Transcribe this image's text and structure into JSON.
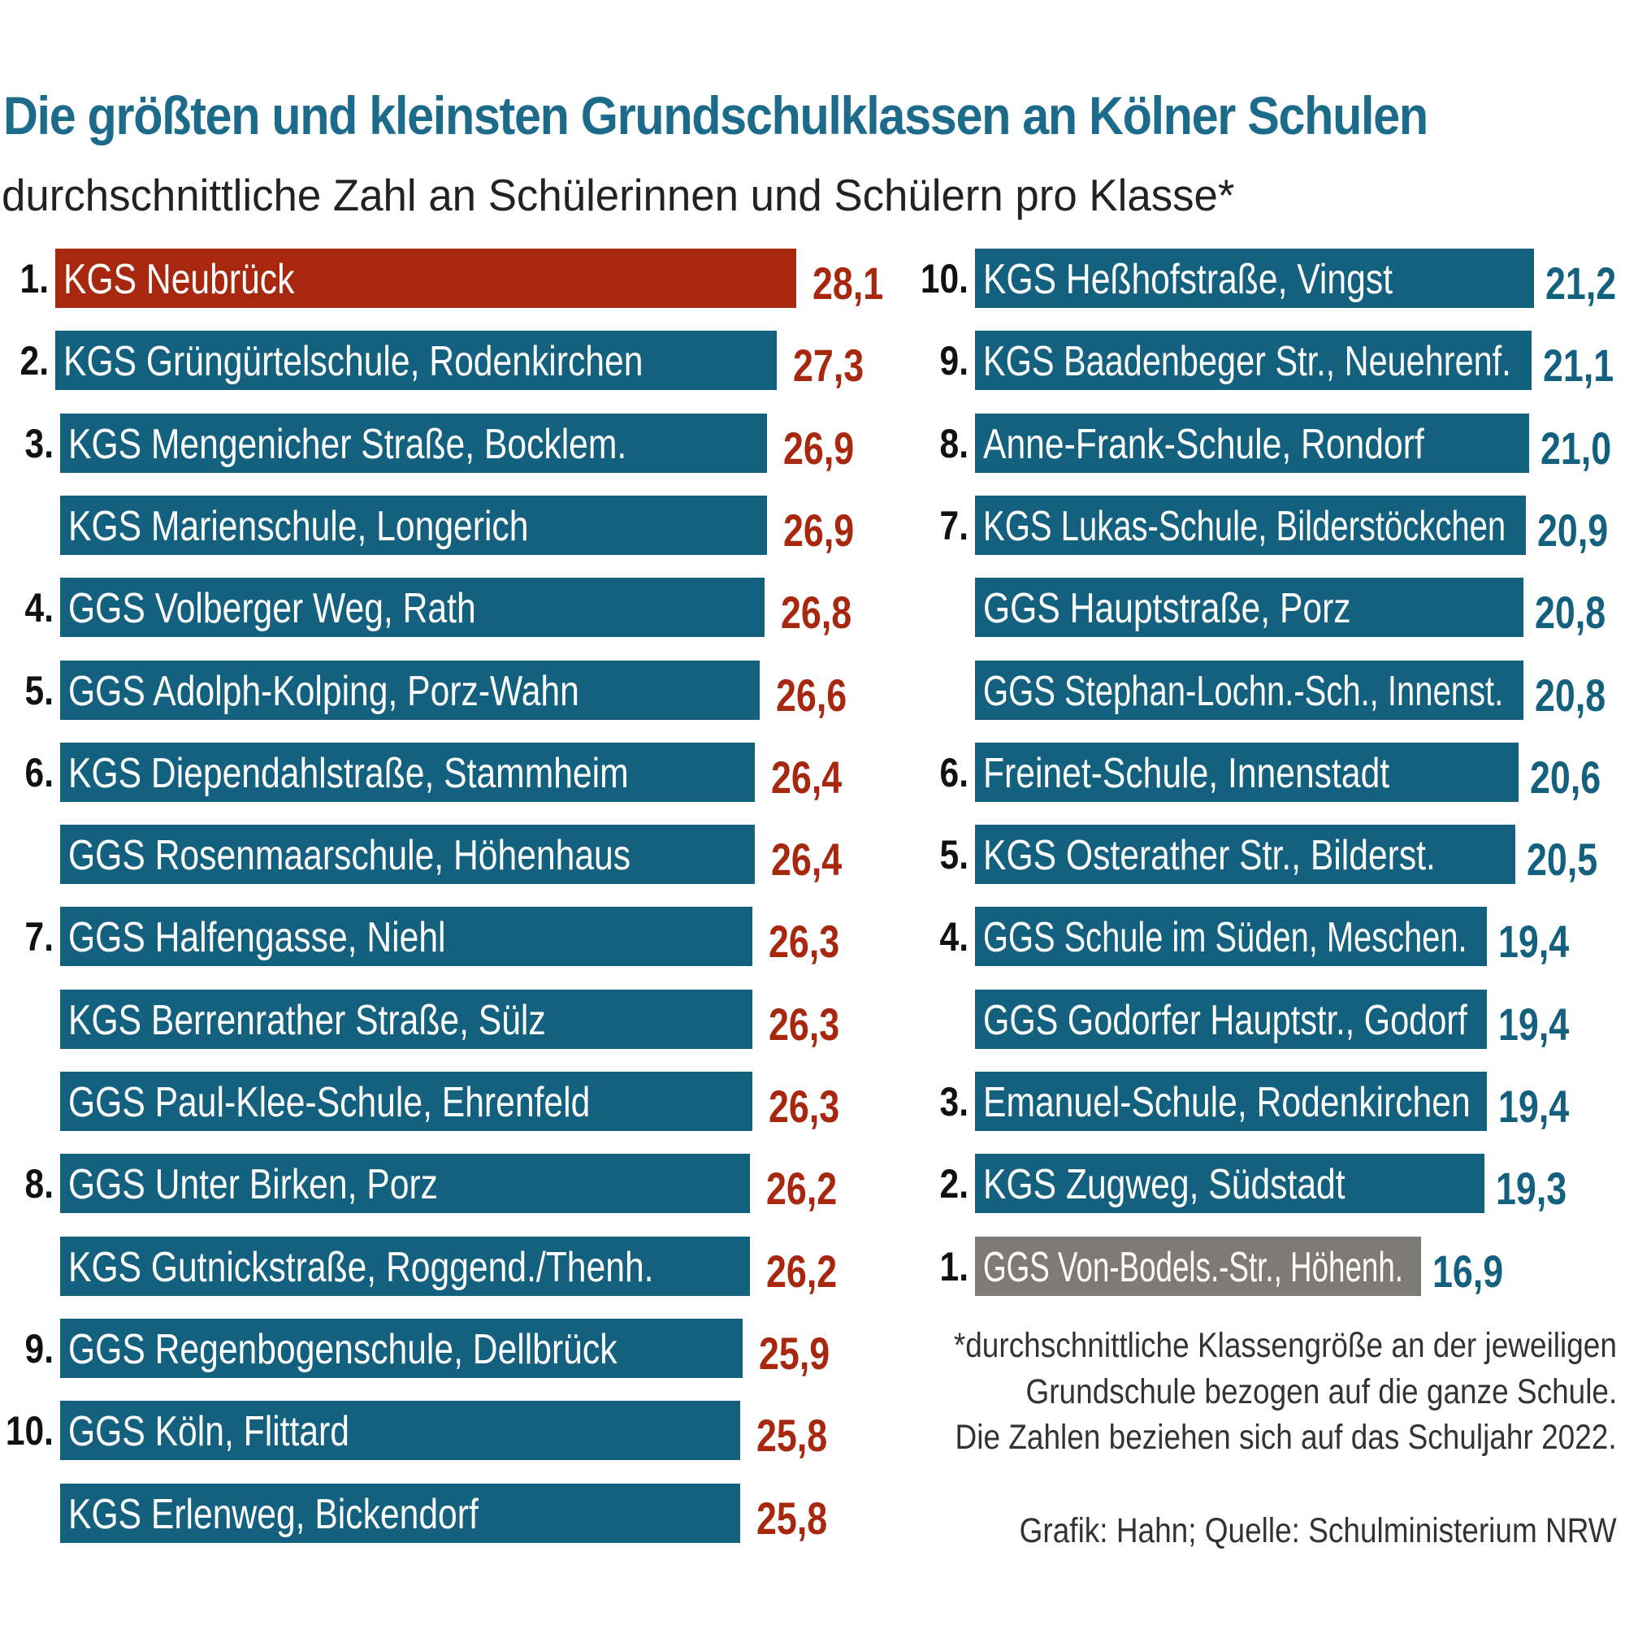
{
  "chart_data": {
    "type": "bar",
    "orientation": "horizontal",
    "title": "Die größten und kleinsten Grundschulklassen an Kölner Schulen",
    "subtitle": "durchschnittliche Zahl an Schülerinnen und Schülern pro Klasse*",
    "colors": {
      "bar": "#13607f",
      "highlight_largest": "#a8280f",
      "highlight_smallest": "#7e7b77",
      "value_left": "#a8280f",
      "value_right": "#13607f",
      "title": "#1d6b8b"
    },
    "largest": [
      {
        "rank": "1.",
        "name": "KGS Neubrück",
        "value": 28.1,
        "label": "28,1"
      },
      {
        "rank": "2.",
        "name": "KGS Grüngürtelschule, Rodenkirchen",
        "value": 27.3,
        "label": "27,3"
      },
      {
        "rank": "3.",
        "name": "KGS Mengenicher Straße, Bocklem.",
        "value": 26.9,
        "label": "26,9"
      },
      {
        "rank": "",
        "name": "KGS Marienschule, Longerich",
        "value": 26.9,
        "label": "26,9"
      },
      {
        "rank": "4.",
        "name": "GGS Volberger Weg, Rath",
        "value": 26.8,
        "label": "26,8"
      },
      {
        "rank": "5.",
        "name": "GGS Adolph-Kolping, Porz-Wahn",
        "value": 26.6,
        "label": "26,6"
      },
      {
        "rank": "6.",
        "name": "KGS Diependahlstraße, Stammheim",
        "value": 26.4,
        "label": "26,4"
      },
      {
        "rank": "",
        "name": "GGS Rosenmaarschule, Höhenhaus",
        "value": 26.4,
        "label": "26,4"
      },
      {
        "rank": "7.",
        "name": "GGS  Halfengasse, Niehl",
        "value": 26.3,
        "label": "26,3"
      },
      {
        "rank": "",
        "name": "KGS Berrenrather Straße, Sülz",
        "value": 26.3,
        "label": "26,3"
      },
      {
        "rank": "",
        "name": "GGS Paul-Klee-Schule, Ehrenfeld",
        "value": 26.3,
        "label": "26,3"
      },
      {
        "rank": "8.",
        "name": "GGS Unter Birken, Porz",
        "value": 26.2,
        "label": "26,2"
      },
      {
        "rank": "",
        "name": "KGS Gutnickstraße, Roggend./Thenh.",
        "value": 26.2,
        "label": "26,2"
      },
      {
        "rank": "9.",
        "name": "GGS Regenbogenschule, Dellbrück",
        "value": 25.9,
        "label": "25,9"
      },
      {
        "rank": "10.",
        "name": "GGS Köln, Flittard",
        "value": 25.8,
        "label": "25,8"
      },
      {
        "rank": "",
        "name": "KGS Erlenweg, Bickendorf",
        "value": 25.8,
        "label": "25,8"
      }
    ],
    "smallest": [
      {
        "rank": "10.",
        "name": "KGS Heßhofstraße, Vingst",
        "value": 21.2,
        "label": "21,2"
      },
      {
        "rank": "9.",
        "name": "KGS Baadenbeger Str., Neuehrenf.",
        "value": 21.1,
        "label": "21,1"
      },
      {
        "rank": "8.",
        "name": "Anne-Frank-Schule, Rondorf",
        "value": 21.0,
        "label": "21,0"
      },
      {
        "rank": "7.",
        "name": "KGS Lukas-Schule, Bilderstöckchen",
        "value": 20.9,
        "label": "20,9"
      },
      {
        "rank": "",
        "name": "GGS Hauptstraße, Porz",
        "value": 20.8,
        "label": "20,8"
      },
      {
        "rank": "",
        "name": "GGS Stephan-Lochn.-Sch., Innenst.",
        "value": 20.8,
        "label": "20,8"
      },
      {
        "rank": "6.",
        "name": "Freinet-Schule, Innenstadt",
        "value": 20.6,
        "label": "20,6"
      },
      {
        "rank": "5.",
        "name": "KGS Osterather Str., Bilderst.",
        "value": 20.5,
        "label": "20,5"
      },
      {
        "rank": "4.",
        "name": "GGS Schule im Süden, Meschen.",
        "value": 19.4,
        "label": "19,4"
      },
      {
        "rank": "",
        "name": "GGS Godorfer Hauptstr., Godorf",
        "value": 19.4,
        "label": "19,4"
      },
      {
        "rank": "3.",
        "name": "Emanuel-Schule, Rodenkirchen",
        "value": 19.4,
        "label": "19,4"
      },
      {
        "rank": "2.",
        "name": "KGS Zugweg, Südstadt",
        "value": 19.3,
        "label": "19,3"
      },
      {
        "rank": "1.",
        "name": "GGS Von-Bodels.-Str., Höhenh.",
        "value": 16.9,
        "label": "16,9"
      }
    ],
    "footnote": [
      "*durchschnittliche Klassengröße an der jeweiligen",
      "Grundschule bezogen auf die ganze Schule.",
      "Die Zahlen beziehen sich auf das Schuljahr 2022."
    ],
    "credit": "Grafik: Hahn; Quelle: Schulministerium NRW"
  }
}
